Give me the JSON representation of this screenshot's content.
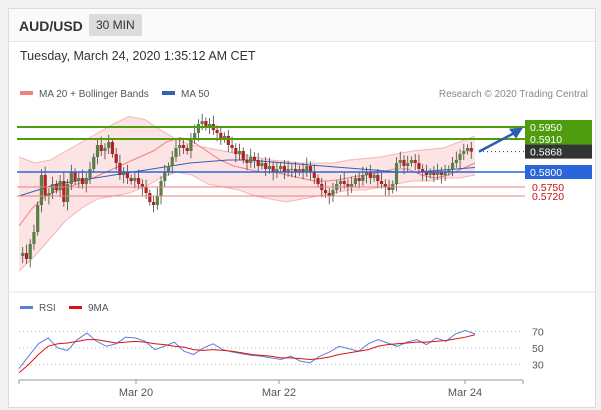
{
  "header": {
    "symbol": "AUD/USD",
    "timeframe": "30 MIN"
  },
  "timestamp": "Tuesday, March 24, 2020 1:35:12 AM CET",
  "legend": {
    "ma20_label": "MA 20 + Bollinger Bands",
    "ma50_label": "MA 50",
    "credit": "Research © 2020 Trading Central",
    "rsi_label": "RSI",
    "nine_ma_label": "9MA"
  },
  "colors": {
    "ma20": "#f08080",
    "band_fill": "#fde4e4",
    "ma50": "#3a5fb0",
    "resistance": "#4f9d0e",
    "support": "#2a66d9",
    "lower_support": "#e88080",
    "current": "#333333",
    "bull": "#5a7e46",
    "bear": "#b22222",
    "rsi": "#5b7fd6",
    "nine_ma": "#dd1111",
    "arrow": "#2a5db0"
  },
  "chart_data": [
    {
      "type": "candlestick",
      "title": "AUD/USD 30 MIN",
      "x_ticks": [
        "Mar 20",
        "Mar 22",
        "Mar 24"
      ],
      "levels": [
        {
          "value": 0.595,
          "label": "0.5950",
          "kind": "resistance"
        },
        {
          "value": 0.591,
          "label": "0.5910",
          "kind": "resistance"
        },
        {
          "value": 0.5868,
          "label": "0.5868",
          "kind": "current"
        },
        {
          "value": 0.58,
          "label": "0.5800",
          "kind": "pivot"
        },
        {
          "value": 0.575,
          "label": "0.5750",
          "kind": "support"
        },
        {
          "value": 0.572,
          "label": "0.5720",
          "kind": "support"
        }
      ],
      "y_range": [
        0.547,
        0.601
      ],
      "close_path": [
        0.552,
        0.553,
        0.551,
        0.556,
        0.56,
        0.569,
        0.579,
        0.572,
        0.573,
        0.576,
        0.574,
        0.577,
        0.57,
        0.576,
        0.58,
        0.577,
        0.578,
        0.576,
        0.578,
        0.581,
        0.585,
        0.589,
        0.587,
        0.588,
        0.59,
        0.586,
        0.583,
        0.579,
        0.58,
        0.578,
        0.577,
        0.578,
        0.576,
        0.575,
        0.573,
        0.57,
        0.569,
        0.572,
        0.577,
        0.58,
        0.582,
        0.585,
        0.588,
        0.589,
        0.588,
        0.587,
        0.591,
        0.593,
        0.596,
        0.597,
        0.595,
        0.596,
        0.594,
        0.593,
        0.591,
        0.592,
        0.589,
        0.588,
        0.586,
        0.587,
        0.584,
        0.583,
        0.585,
        0.584,
        0.582,
        0.583,
        0.581,
        0.582,
        0.58,
        0.581,
        0.582,
        0.58,
        0.581,
        0.581,
        0.58,
        0.581,
        0.58,
        0.582,
        0.58,
        0.578,
        0.576,
        0.574,
        0.573,
        0.572,
        0.574,
        0.576,
        0.577,
        0.576,
        0.575,
        0.576,
        0.578,
        0.577,
        0.579,
        0.58,
        0.578,
        0.579,
        0.577,
        0.576,
        0.575,
        0.574,
        0.576,
        0.583,
        0.584,
        0.582,
        0.583,
        0.584,
        0.583,
        0.581,
        0.58,
        0.579,
        0.58,
        0.579,
        0.58,
        0.579,
        0.58,
        0.581,
        0.583,
        0.584,
        0.586,
        0.587,
        0.588,
        0.5868
      ],
      "ma20": [
        0.562,
        0.568,
        0.572,
        0.574,
        0.5755,
        0.577,
        0.579,
        0.581,
        0.583,
        0.585,
        0.587,
        0.59,
        0.5915,
        0.59,
        0.587,
        0.584,
        0.582,
        0.581,
        0.58,
        0.58,
        0.579,
        0.578,
        0.577,
        0.577,
        0.5775,
        0.5785,
        0.579,
        0.58,
        0.581,
        0.581,
        0.579,
        0.578,
        0.579,
        0.581,
        0.583
      ],
      "bb_upper": [
        0.585,
        0.583,
        0.584,
        0.587,
        0.59,
        0.593,
        0.596,
        0.5985,
        0.5975,
        0.594,
        0.591,
        0.589,
        0.588,
        0.587,
        0.586,
        0.585,
        0.584,
        0.5835,
        0.583,
        0.583,
        0.583,
        0.584,
        0.5845,
        0.585,
        0.586,
        0.587,
        0.5875,
        0.588,
        0.59,
        0.592
      ],
      "bb_lower": [
        0.547,
        0.552,
        0.558,
        0.564,
        0.568,
        0.571,
        0.572,
        0.573,
        0.575,
        0.578,
        0.58,
        0.579,
        0.576,
        0.575,
        0.574,
        0.572,
        0.571,
        0.57,
        0.571,
        0.572,
        0.573,
        0.574,
        0.574,
        0.575,
        0.576,
        0.577,
        0.577,
        0.578,
        0.578,
        0.579
      ],
      "ma50": [
        0.572,
        0.574,
        0.576,
        0.577,
        0.578,
        0.579,
        0.58,
        0.581,
        0.582,
        0.583,
        0.5835,
        0.584,
        0.584,
        0.5835,
        0.583,
        0.5825,
        0.582,
        0.5815,
        0.581,
        0.5805,
        0.58,
        0.58,
        0.5805,
        0.581,
        0.5815
      ]
    },
    {
      "type": "line",
      "title": "RSI",
      "y_ticks": [
        70,
        50,
        30
      ],
      "y_range": [
        10,
        85
      ],
      "series": [
        {
          "name": "RSI",
          "values": [
            25,
            40,
            55,
            62,
            50,
            47,
            60,
            68,
            58,
            52,
            55,
            63,
            62,
            58,
            48,
            52,
            57,
            46,
            42,
            50,
            55,
            48,
            45,
            43,
            41,
            40,
            38,
            36,
            40,
            34,
            32,
            40,
            45,
            52,
            49,
            46,
            55,
            60,
            56,
            52,
            57,
            60,
            54,
            62,
            58,
            67,
            71,
            67
          ]
        },
        {
          "name": "9MA",
          "values": [
            20,
            30,
            42,
            52,
            55,
            56,
            58,
            60,
            60,
            58,
            56,
            57,
            58,
            57,
            55,
            54,
            52,
            51,
            48,
            47,
            48,
            47,
            46,
            44,
            42,
            41,
            40,
            38,
            38,
            37,
            36,
            37,
            39,
            42,
            44,
            46,
            48,
            52,
            54,
            55,
            56,
            57,
            57,
            58,
            59,
            61,
            63,
            66
          ]
        }
      ]
    }
  ]
}
